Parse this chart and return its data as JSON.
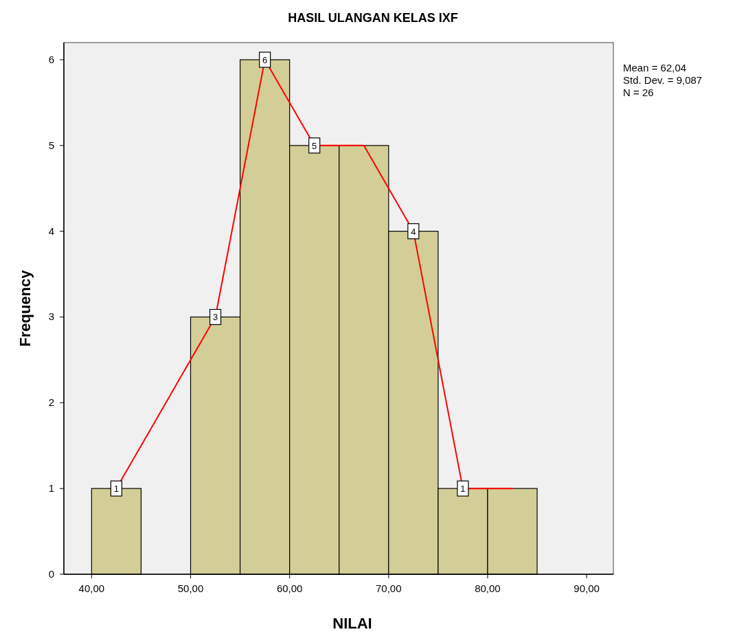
{
  "chart_data": {
    "type": "histogram",
    "title": "HASIL ULANGAN KELAS IXF",
    "xlabel": "NILAI",
    "ylabel": "Frequency",
    "annotations": [
      "Mean = 62,04",
      "Std. Dev. = 9,087",
      "N = 26"
    ],
    "xlim": [
      37.2,
      92.7
    ],
    "ylim": [
      0,
      6.2
    ],
    "xticks": [
      {
        "value": 40,
        "label": "40,00"
      },
      {
        "value": 50,
        "label": "50,00"
      },
      {
        "value": 60,
        "label": "60,00"
      },
      {
        "value": 70,
        "label": "70,00"
      },
      {
        "value": 80,
        "label": "80,00"
      },
      {
        "value": 90,
        "label": "90,00"
      }
    ],
    "yticks": [
      0,
      1,
      2,
      3,
      4,
      5,
      6
    ],
    "series": [
      {
        "color": "#d3ce97",
        "bins": [
          40,
          45,
          50,
          55,
          60,
          65,
          70,
          75,
          80,
          85
        ],
        "values": [
          1,
          0,
          3,
          6,
          5,
          5,
          4,
          1,
          1
        ]
      },
      {
        "type": "line",
        "color": "#ff0000",
        "x": [
          42.5,
          52.5,
          57.5,
          62.5,
          67.5,
          72.5,
          77.5,
          82.5
        ],
        "values": [
          1,
          3,
          6,
          5,
          5,
          4,
          1,
          1
        ],
        "value_labels": [
          "1",
          "3",
          "6",
          "5",
          null,
          "4",
          "1",
          null
        ]
      }
    ],
    "legend": false
  }
}
